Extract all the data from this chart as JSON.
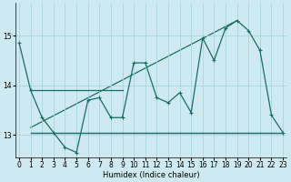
{
  "xlabel": "Humidex (Indice chaleur)",
  "bg_color": "#ceeaf0",
  "grid_color": "#aad4dc",
  "line_color": "#1a6b6b",
  "x_ticks": [
    0,
    1,
    2,
    3,
    4,
    5,
    6,
    7,
    8,
    9,
    10,
    11,
    12,
    13,
    14,
    15,
    16,
    17,
    18,
    19,
    20,
    21,
    22,
    23
  ],
  "y_ticks": [
    13,
    14,
    15
  ],
  "ylim": [
    12.55,
    15.65
  ],
  "xlim": [
    -0.3,
    23.3
  ],
  "series_main": {
    "x": [
      0,
      1,
      2,
      3,
      4,
      5,
      6,
      7,
      8,
      9,
      10,
      11,
      12,
      13,
      14,
      15,
      16,
      17,
      18,
      19,
      20,
      21,
      22,
      23
    ],
    "y": [
      14.85,
      13.9,
      13.35,
      13.05,
      12.75,
      12.65,
      13.7,
      13.75,
      13.35,
      13.35,
      14.45,
      14.45,
      13.75,
      13.65,
      13.85,
      13.45,
      14.95,
      14.5,
      15.15,
      15.3,
      15.1,
      14.7,
      13.4,
      13.05
    ]
  },
  "series_flat13": {
    "x": [
      1,
      23
    ],
    "y": [
      13.05,
      13.05
    ]
  },
  "series_flat14": {
    "x": [
      1,
      9
    ],
    "y": [
      13.9,
      13.9
    ]
  },
  "series_trend": {
    "x": [
      1,
      19
    ],
    "y": [
      13.15,
      15.3
    ]
  }
}
